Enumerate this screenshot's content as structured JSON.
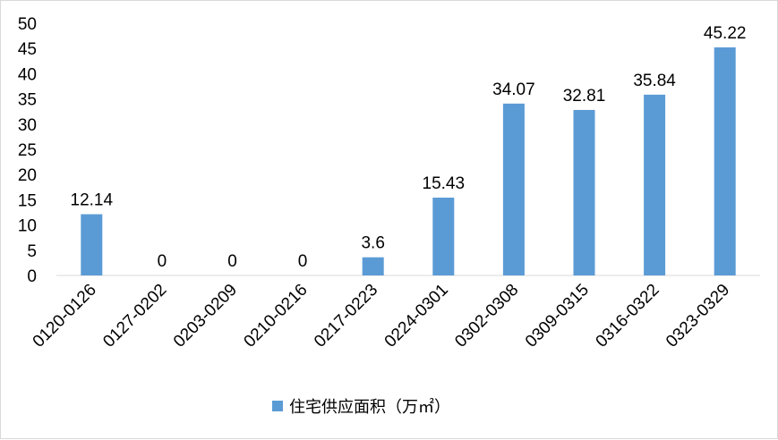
{
  "chart_data": {
    "type": "bar",
    "categories": [
      "0120-0126",
      "0127-0202",
      "0203-0209",
      "0210-0216",
      "0217-0223",
      "0224-0301",
      "0302-0308",
      "0309-0315",
      "0316-0322",
      "0323-0329"
    ],
    "series": [
      {
        "name": "住宅供应面积（万㎡）",
        "values": [
          12.14,
          0,
          0,
          0,
          3.6,
          15.43,
          34.07,
          32.81,
          35.84,
          45.22
        ],
        "color": "#5b9bd5"
      }
    ],
    "data_labels": [
      "12.14",
      "0",
      "0",
      "0",
      "3.6",
      "15.43",
      "34.07",
      "32.81",
      "35.84",
      "45.22"
    ],
    "y_ticks": [
      0,
      5,
      10,
      15,
      20,
      25,
      30,
      35,
      40,
      45,
      50
    ],
    "ylim": [
      0,
      50
    ],
    "title": "",
    "xlabel": "",
    "ylabel": "",
    "grid": false,
    "legend_position": "bottom",
    "axis_color": "#d9d9d9"
  }
}
